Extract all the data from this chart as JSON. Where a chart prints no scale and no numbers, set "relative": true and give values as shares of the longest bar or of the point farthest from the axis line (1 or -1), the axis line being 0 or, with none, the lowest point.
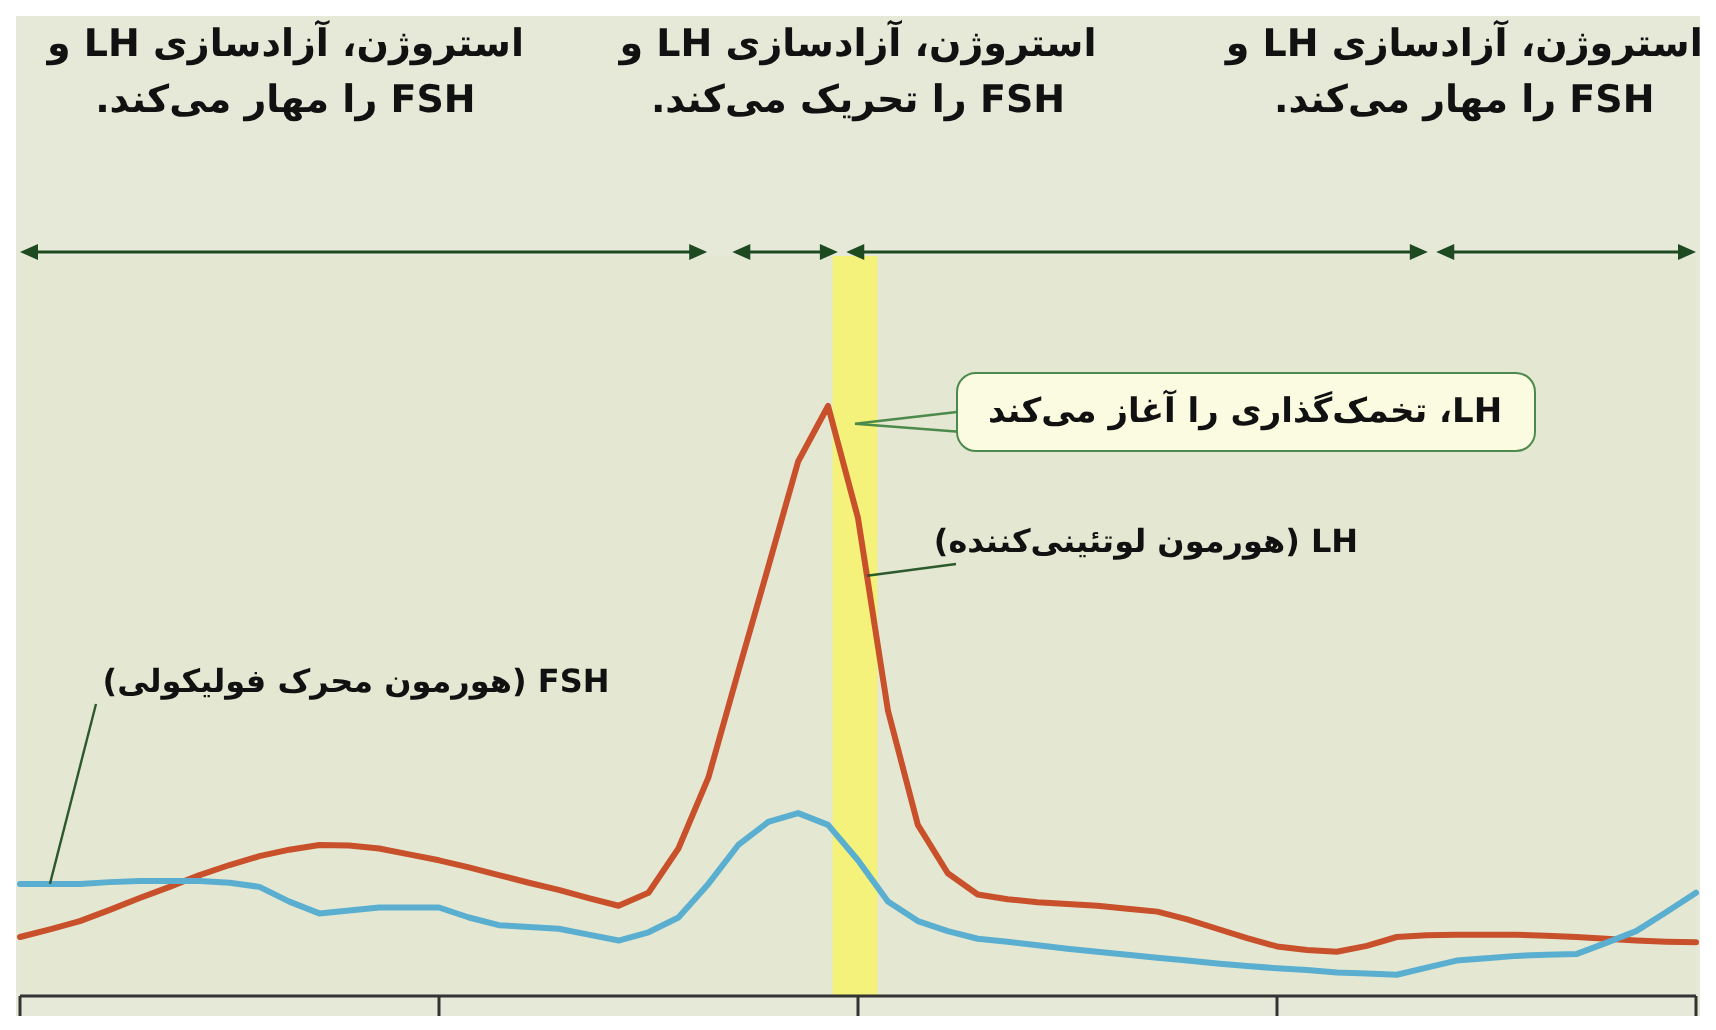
{
  "chart_data": {
    "type": "line",
    "relative": true,
    "categories": [
      null,
      null,
      null,
      null,
      null,
      null,
      null,
      null,
      null,
      null,
      null,
      null,
      null,
      null,
      null,
      null,
      null,
      null,
      null,
      null,
      null,
      null,
      null,
      null,
      null,
      null,
      null,
      null,
      null,
      null,
      null,
      null,
      null,
      null,
      null,
      null,
      null,
      null,
      null,
      null,
      null,
      null,
      null,
      null,
      null,
      null,
      null,
      null,
      null,
      null,
      null,
      null,
      null,
      null,
      null,
      null,
      null
    ],
    "marker": "none",
    "line_style": "solid",
    "series": [
      {
        "name": "LH (هورمون لوتئینی‌کننده)",
        "color": "#c8502a",
        "values": [
          0.1,
          0.113,
          0.127,
          0.146,
          0.166,
          0.185,
          0.205,
          0.222,
          0.237,
          0.248,
          0.256,
          0.255,
          0.25,
          0.24,
          0.23,
          0.218,
          0.205,
          0.192,
          0.18,
          0.166,
          0.153,
          0.175,
          0.25,
          0.37,
          0.55,
          0.727,
          0.906,
          1,
          0.81,
          0.484,
          0.29,
          0.208,
          0.172,
          0.164,
          0.159,
          0.156,
          0.153,
          0.148,
          0.143,
          0.13,
          0.114,
          0.098,
          0.084,
          0.078,
          0.075,
          0.085,
          0.1,
          0.103,
          0.104,
          0.104,
          0.104,
          0.102,
          0.1,
          0.097,
          0.094,
          0.092,
          0.091
        ]
      },
      {
        "name": "FSH (هورمون محرک فولیکولی)",
        "color": "#5aaed0",
        "values": [
          0.19,
          0.19,
          0.19,
          0.193,
          0.195,
          0.195,
          0.195,
          0.192,
          0.185,
          0.16,
          0.14,
          0.145,
          0.15,
          0.15,
          0.15,
          0.133,
          0.12,
          0.117,
          0.114,
          0.104,
          0.094,
          0.108,
          0.133,
          0.19,
          0.256,
          0.295,
          0.31,
          0.29,
          0.23,
          0.16,
          0.127,
          0.11,
          0.097,
          0.092,
          0.086,
          0.08,
          0.075,
          0.07,
          0.065,
          0.06,
          0.055,
          0.051,
          0.047,
          0.044,
          0.04,
          0.038,
          0.036,
          0.048,
          0.06,
          0.064,
          0.068,
          0.07,
          0.071,
          0.09,
          0.11,
          0.142,
          0.175
        ]
      }
    ],
    "annotations": [
      "استروژن، آزادسازی LH و FSH را مهار می‌کند.",
      "استروژن، آزادسازی LH و FSH را تحریک می‌کند.",
      "استروژن، آزادسازی LH و FSH را مهار می‌کند.",
      "LH، تخمک‌گذاری را آغاز می‌کند"
    ]
  }
}
